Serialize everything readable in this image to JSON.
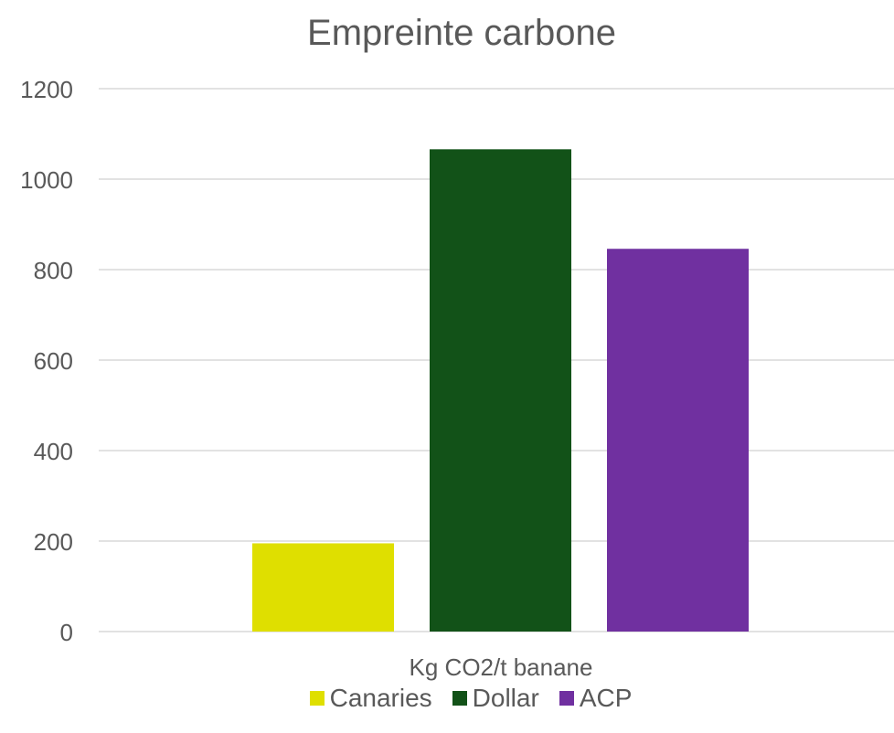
{
  "chart_data": {
    "type": "bar",
    "title": "Empreinte carbone",
    "categories": [
      "Kg CO2/t banane"
    ],
    "series": [
      {
        "name": "Canaries",
        "values": [
          195
        ],
        "color": "#dfdf00"
      },
      {
        "name": "Dollar",
        "values": [
          1066
        ],
        "color": "#125218"
      },
      {
        "name": "ACP",
        "values": [
          846
        ],
        "color": "#7030a0"
      }
    ],
    "ylim": [
      0,
      1200
    ],
    "yticks": [
      0,
      200,
      400,
      600,
      800,
      1000,
      1200
    ],
    "grid": true,
    "legend_position": "bottom"
  }
}
